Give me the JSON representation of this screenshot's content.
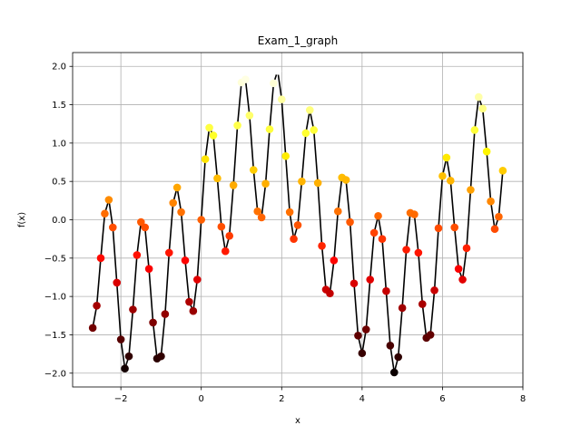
{
  "chart_data": {
    "type": "scatter",
    "title": "Exam_1_graph",
    "xlabel": "x",
    "ylabel": "f(x)",
    "xlim": [
      -3.2,
      8.0
    ],
    "ylim": [
      -2.18,
      2.18
    ],
    "xticks": [
      -2,
      0,
      2,
      4,
      6,
      8
    ],
    "yticks": [
      -2.0,
      -1.5,
      -1.0,
      -0.5,
      0.0,
      0.5,
      1.0,
      1.5,
      2.0
    ],
    "xtick_labels": [
      "−2",
      "0",
      "2",
      "4",
      "6",
      "8"
    ],
    "ytick_labels": [
      "−2.0",
      "−1.5",
      "−1.0",
      "−0.5",
      "0.0",
      "0.5",
      "1.0",
      "1.5",
      "2.0"
    ],
    "grid": true,
    "colormap": "hot",
    "line_color": "#000000",
    "x": [
      -2.7,
      -2.6,
      -2.5,
      -2.4,
      -2.3,
      -2.2,
      -2.1,
      -2.0,
      -1.9,
      -1.8,
      -1.7,
      -1.6,
      -1.5,
      -1.4,
      -1.3,
      -1.2,
      -1.1,
      -1.0,
      -0.9,
      -0.8,
      -0.7,
      -0.6,
      -0.5,
      -0.4,
      -0.3,
      -0.2,
      -0.1,
      0.0,
      0.1,
      0.2,
      0.3,
      0.4,
      0.5,
      0.6,
      0.7,
      0.8,
      0.9,
      1.0,
      1.1,
      1.2,
      1.3,
      1.4,
      1.5,
      1.6,
      1.7,
      1.8,
      1.9,
      2.0,
      2.1,
      2.2,
      2.3,
      2.4,
      2.5,
      2.6,
      2.7,
      2.8,
      2.9,
      3.0,
      3.1,
      3.2,
      3.3,
      3.4,
      3.5,
      3.6,
      3.7,
      3.8,
      3.9,
      4.0,
      4.1,
      4.2,
      4.3,
      4.4,
      4.5,
      4.6,
      4.7,
      4.8,
      4.9,
      5.0,
      5.1,
      5.2,
      5.3,
      5.4,
      5.5,
      5.6,
      5.7,
      5.8,
      5.9,
      6.0,
      6.1,
      6.2,
      6.3,
      6.4,
      6.5,
      6.6,
      6.7,
      6.8,
      6.9,
      7.0,
      7.1,
      7.2,
      7.3,
      7.4,
      7.5
    ],
    "y": [
      -1.41,
      -1.12,
      -0.5,
      0.08,
      0.26,
      -0.1,
      -0.82,
      -1.56,
      -1.94,
      -1.78,
      -1.17,
      -0.46,
      -0.03,
      -0.1,
      -0.64,
      -1.34,
      -1.81,
      -1.78,
      -1.23,
      -0.43,
      0.22,
      0.42,
      0.1,
      -0.53,
      -1.07,
      -1.19,
      -0.78,
      0.0,
      0.79,
      1.2,
      1.1,
      0.54,
      -0.09,
      -0.41,
      -0.21,
      0.45,
      1.23,
      1.79,
      1.83,
      1.36,
      0.65,
      0.11,
      0.03,
      0.47,
      1.18,
      1.78,
      1.94,
      1.57,
      0.83,
      0.1,
      -0.25,
      -0.07,
      0.5,
      1.13,
      1.43,
      1.17,
      0.48,
      -0.34,
      -0.91,
      -0.96,
      -0.53,
      0.11,
      0.55,
      0.52,
      -0.03,
      -0.83,
      -1.51,
      -1.74,
      -1.43,
      -0.78,
      -0.17,
      0.05,
      -0.25,
      -0.93,
      -1.64,
      -1.99,
      -1.79,
      -1.15,
      -0.39,
      0.09,
      0.07,
      -0.43,
      -1.1,
      -1.54,
      -1.5,
      -0.92,
      -0.11,
      0.57,
      0.81,
      0.51,
      -0.1,
      -0.64,
      -0.78,
      -0.37,
      0.39,
      1.17,
      1.6,
      1.45,
      0.89,
      0.24,
      -0.12,
      0.04,
      0.64
    ],
    "color_by": "y"
  }
}
